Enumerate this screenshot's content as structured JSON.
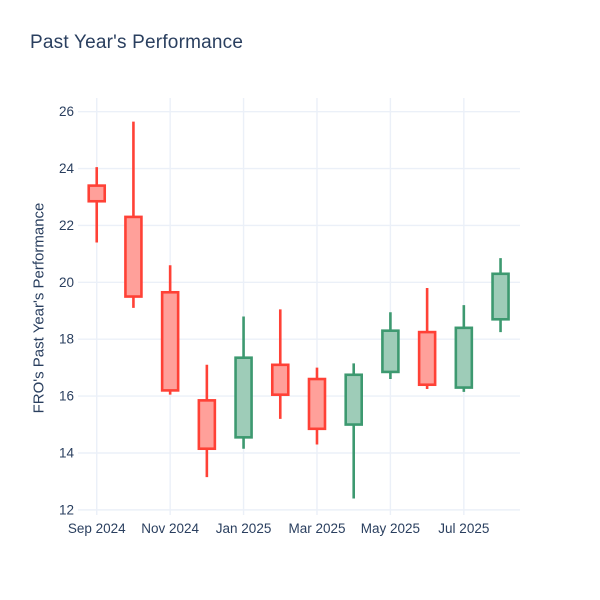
{
  "chart_data": {
    "type": "candlestick",
    "title": "Past Year's Performance",
    "ylabel": "FRO's Past Year's Performance",
    "xlabel": "",
    "categories": [
      "Sep 2024",
      "Oct 2024",
      "Nov 2024",
      "Dec 2024",
      "Jan 2025",
      "Feb 2025",
      "Mar 2025",
      "Apr 2025",
      "May 2025",
      "Jun 2025",
      "Jul 2025",
      "Aug 2025"
    ],
    "open": [
      23.4,
      22.3,
      19.65,
      15.85,
      14.55,
      17.1,
      16.6,
      15.0,
      16.85,
      18.25,
      16.3,
      18.7
    ],
    "high": [
      24.05,
      25.65,
      20.6,
      17.1,
      18.8,
      19.05,
      17.0,
      17.15,
      18.95,
      19.8,
      19.2,
      20.85
    ],
    "low": [
      21.4,
      19.1,
      16.05,
      13.15,
      14.15,
      15.2,
      14.3,
      12.4,
      16.6,
      16.25,
      16.15,
      18.25
    ],
    "close": [
      22.85,
      19.5,
      16.2,
      14.15,
      17.35,
      16.05,
      14.85,
      16.75,
      18.3,
      16.4,
      18.4,
      20.3
    ],
    "yticks": [
      12,
      14,
      16,
      18,
      20,
      22,
      24,
      26
    ],
    "xticks": {
      "positions": [
        0,
        2,
        4,
        6,
        8,
        10
      ],
      "labels": [
        "Sep 2024",
        "Nov 2024",
        "Jan 2025",
        "Mar 2025",
        "May 2025",
        "Jul 2025"
      ]
    },
    "ylim": [
      11.82,
      26.48
    ],
    "xlim": [
      -0.51,
      11.53
    ],
    "grid": true,
    "legend": "none",
    "colors": {
      "increasing_line": "#3D9970",
      "increasing_fill": "#9ECCB8",
      "decreasing_line": "#FF4136",
      "decreasing_fill": "#FFA09A",
      "grid": "#EBF0F8",
      "text": "#2A3F5F",
      "background": "#FFFFFF"
    }
  }
}
